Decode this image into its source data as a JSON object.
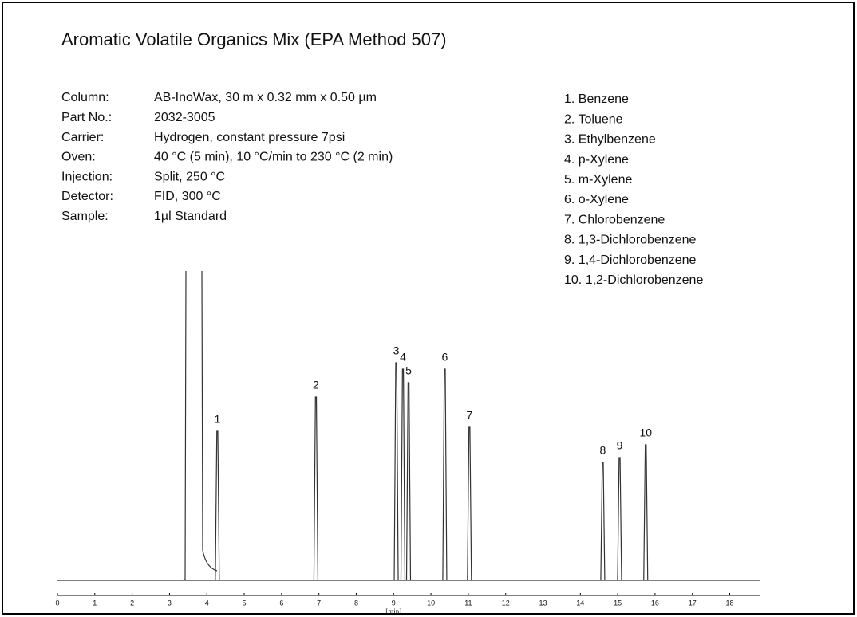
{
  "chart_data": {
    "type": "chromatogram",
    "title": "Aromatic Volatile Organics Mix (EPA Method 507)",
    "info": [
      {
        "label": "Column:",
        "value": "AB-InoWax, 30 m x 0.32 mm x 0.50 µm"
      },
      {
        "label": "Part No.:",
        "value": "2032-3005"
      },
      {
        "label": "Carrier:",
        "value": "Hydrogen, constant pressure 7psi"
      },
      {
        "label": "Oven:",
        "value": "40 °C (5 min), 10 °C/min to 230 °C (2 min)"
      },
      {
        "label": "Injection:",
        "value": "Split, 250 °C"
      },
      {
        "label": "Detector:",
        "value": "FID, 300 °C"
      },
      {
        "label": "Sample:",
        "value": "1µl Standard"
      }
    ],
    "compounds": [
      "1. Benzene",
      "2. Toluene",
      "3. Ethylbenzene",
      "4. p-Xylene",
      "5. m-Xylene",
      "6. o-Xylene",
      "7. Chlorobenzene",
      "8. 1,3-Dichlorobenzene",
      "9. 1,4-Dichlorobenzene",
      "10. 1,2-Dichlorobenzene"
    ],
    "peak_labels": [
      "1",
      "2",
      "3",
      "4",
      "5",
      "6",
      "7",
      "8",
      "9",
      "10"
    ],
    "x": [
      4.28,
      6.92,
      9.07,
      9.25,
      9.4,
      10.37,
      11.03,
      14.6,
      15.05,
      15.75
    ],
    "values": [
      187,
      230,
      273,
      265,
      248,
      265,
      192,
      148,
      154,
      170
    ],
    "color": "#333333",
    "xlabel": "[min]",
    "xlim": [
      0,
      18.8
    ],
    "xticks": [
      0,
      1,
      2,
      3,
      4,
      5,
      6,
      7,
      8,
      9,
      10,
      11,
      12,
      13,
      14,
      15,
      16,
      17,
      18
    ],
    "ylim": [
      0,
      390
    ]
  }
}
